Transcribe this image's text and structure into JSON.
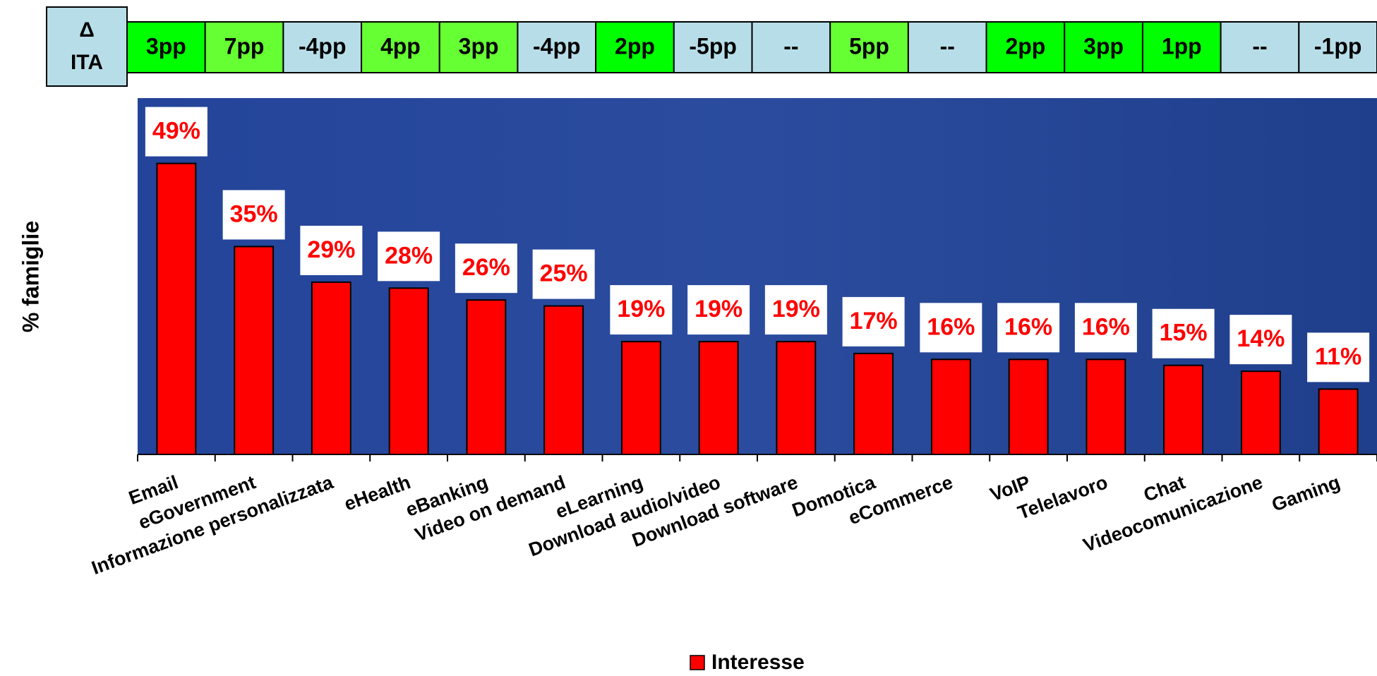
{
  "chart_data": {
    "type": "bar",
    "y_label": "% famiglie",
    "categories": [
      "Email",
      "eGovernment",
      "Informazione personalizzata",
      "eHealth",
      "eBanking",
      "Video on demand",
      "eLearning",
      "Download audio/video",
      "Download software",
      "Domotica",
      "eCommerce",
      "VoIP",
      "Telelavoro",
      "Chat",
      "Videocomunicazione",
      "Gaming"
    ],
    "series": [
      {
        "name": "Interesse",
        "color": "#ff0000",
        "values": [
          49,
          35,
          29,
          28,
          26,
          25,
          19,
          19,
          19,
          17,
          16,
          16,
          16,
          15,
          14,
          11
        ],
        "value_labels": [
          "49%",
          "35%",
          "29%",
          "28%",
          "26%",
          "25%",
          "19%",
          "19%",
          "19%",
          "17%",
          "16%",
          "16%",
          "16%",
          "15%",
          "14%",
          "11%"
        ]
      }
    ],
    "ylim": [
      0,
      60
    ],
    "legend": "bottom",
    "background": "#2b4c9e",
    "deltas": {
      "symbol": "Δ",
      "label": "ITA",
      "values": [
        "3pp",
        "7pp",
        "-4pp",
        "4pp",
        "3pp",
        "-4pp",
        "2pp",
        "-5pp",
        "--",
        "5pp",
        "--",
        "2pp",
        "3pp",
        "1pp",
        "--",
        "-1pp"
      ],
      "colors": [
        "#00ff00",
        "#66ff33",
        "#b7dee8",
        "#66ff33",
        "#66ff33",
        "#b7dee8",
        "#00ff00",
        "#b7dee8",
        "#b7dee8",
        "#66ff33",
        "#b7dee8",
        "#00ff00",
        "#00ff00",
        "#00ff00",
        "#b7dee8",
        "#b7dee8"
      ]
    }
  }
}
